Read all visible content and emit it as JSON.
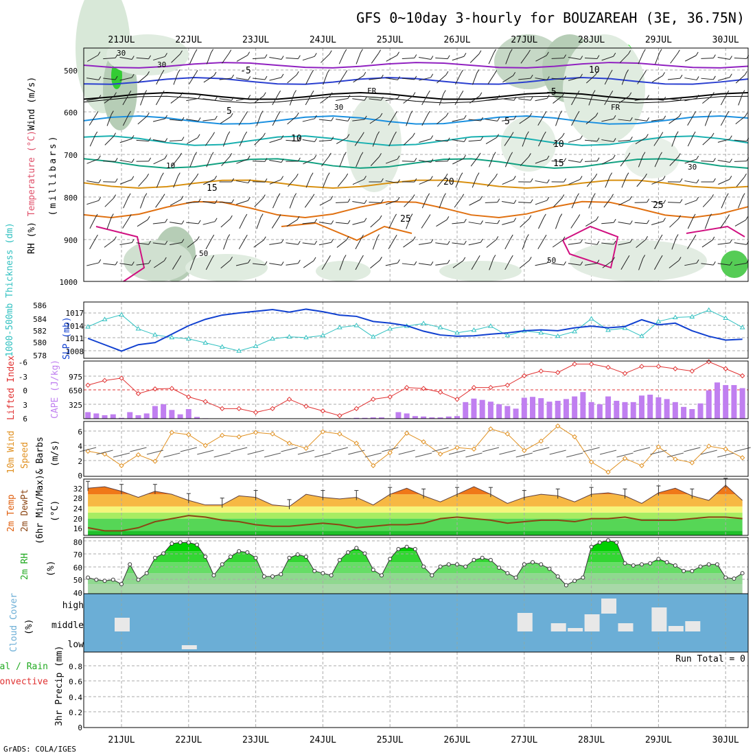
{
  "header": {
    "title": "GFS 0~10day 3-hourly for BOUZAREAH (3E, 36.75N)",
    "footer": "GrADS: COLA/IGES",
    "run_total": "Run Total = 0"
  },
  "dates": [
    "21JUL",
    "22JUL",
    "23JUL",
    "24JUL",
    "25JUL",
    "26JUL",
    "27JUL",
    "28JUL",
    "29JUL",
    "30JUL"
  ],
  "colors": {
    "cloud_bg": "#6baed6",
    "cape_bar": "#c07ff0",
    "rh_green": "#22cc22",
    "temp_orange": "#f07818",
    "slp_line": "#1040d0",
    "thick_line": "#30c0c0",
    "li_line": "#e03030",
    "wind_line": "#e09020",
    "dew_line": "#8b4513"
  },
  "panels": {
    "profile": {
      "y_label": "(millibars)",
      "y_ticks": [
        "500",
        "600",
        "700",
        "800",
        "900",
        "1000"
      ],
      "side_labels": {
        "rh": "RH (%)",
        "temp": "Temperature (°C)",
        "wind": "Wind (m/s)"
      },
      "contour_labels": {
        "t_m5": "-5",
        "t_m5b": "-5",
        "t_fr": "FR",
        "t_fr2": "FR",
        "t_5": "5",
        "t_5b": "5",
        "t_10": "10",
        "t_10b": "10",
        "t_10c": "10",
        "t_15": "15",
        "t_15b": "15",
        "t_20": "20",
        "t_25": "25",
        "t_25b": "25",
        "rh_30": "30",
        "rh_30b": "30",
        "rh_30c": "30",
        "rh_30d": "30",
        "rh_10": "10",
        "rh_50": "50",
        "rh_50b": "50"
      }
    },
    "pressure": {
      "label_thick": "1000-500mb Thickness (dm)",
      "label_slp": "SLP (mb)",
      "thick_ticks": [
        "586",
        "584",
        "582",
        "580",
        "578"
      ],
      "slp_ticks": [
        "1017",
        "1014",
        "1011",
        "1008"
      ]
    },
    "stability": {
      "label_li": "Lifted Index",
      "label_cape": "CAPE (J/kg)",
      "li_ticks": [
        "-6",
        "-3",
        "0",
        "3",
        "6"
      ],
      "cape_ticks": [
        "975",
        "650",
        "325"
      ]
    },
    "wind10": {
      "label_a": "10m Wind",
      "label_b": "Speed",
      "label_c": "& Barbs",
      "label_d": "(m/s)",
      "ticks": [
        "6",
        "4",
        "2",
        "0"
      ]
    },
    "temp2m": {
      "label_a": "2m Temp",
      "label_b": "2m DewPt",
      "label_c": "(6hr Min/Max)",
      "label_d": "(°C)",
      "ticks": [
        "32",
        "28",
        "24",
        "20",
        "16"
      ]
    },
    "rh2m": {
      "label_a": "2m RH",
      "label_b": "(%)",
      "ticks": [
        "80",
        "70",
        "60",
        "50",
        "40"
      ]
    },
    "cloud": {
      "label_a": "Cloud Cover",
      "label_b": "(%)",
      "levels": [
        "high",
        "middle",
        "low"
      ]
    },
    "precip": {
      "label_a": "Total / Rain",
      "label_b": "Convective",
      "label_c": "3hr Precip (mm)",
      "ticks": [
        "0.8",
        "0.6",
        "0.4",
        "0.2",
        "0"
      ]
    }
  },
  "chart_data": [
    {
      "type": "line",
      "panel": "1000-500mb Thickness / SLP",
      "x_unit": "day index (0 = 21JUL 00Z)",
      "series": [
        {
          "name": "1000-500mb Thickness (dm)",
          "x": [
            -0.5,
            -0.25,
            0,
            0.25,
            0.5,
            0.75,
            1,
            1.25,
            1.5,
            1.75,
            2,
            2.25,
            2.5,
            2.75,
            3,
            3.25,
            3.5,
            3.75,
            4,
            4.25,
            4.5,
            4.75,
            5,
            5.25,
            5.5,
            5.75,
            6,
            6.25,
            6.5,
            6.75,
            7,
            7.25,
            7.5,
            7.75,
            8,
            8.25,
            8.5,
            8.75,
            9,
            9.25
          ],
          "values": [
            582.5,
            583.6,
            584.3,
            582.2,
            581.3,
            580.9,
            580.7,
            580.1,
            579.5,
            578.9,
            579.6,
            580.7,
            581.0,
            580.9,
            581.2,
            582.4,
            582.7,
            581.0,
            582.2,
            582.6,
            583.0,
            582.4,
            581.6,
            582.0,
            582.6,
            581.2,
            581.9,
            581.6,
            581.1,
            581.8,
            583.7,
            582.0,
            582.3,
            581.1,
            583.3,
            583.9,
            584.0,
            585.0,
            583.8,
            582.4
          ]
        },
        {
          "name": "SLP (mb)",
          "x": [
            -0.5,
            -0.25,
            0,
            0.25,
            0.5,
            0.75,
            1,
            1.25,
            1.5,
            1.75,
            2,
            2.25,
            2.5,
            2.75,
            3,
            3.25,
            3.5,
            3.75,
            4,
            4.25,
            4.5,
            4.75,
            5,
            5.25,
            5.5,
            5.75,
            6,
            6.25,
            6.5,
            6.75,
            7,
            7.25,
            7.5,
            7.75,
            8,
            8.25,
            8.5,
            8.75,
            9,
            9.25
          ],
          "values": [
            1011,
            1009.5,
            1008,
            1009.5,
            1010,
            1012,
            1014,
            1015.5,
            1016.5,
            1017,
            1017.4,
            1017.8,
            1017.2,
            1017.9,
            1017.3,
            1016.5,
            1016.2,
            1015,
            1014.6,
            1014,
            1012.7,
            1011.8,
            1011.5,
            1011.6,
            1012,
            1012.3,
            1012.8,
            1013,
            1012.8,
            1013.5,
            1013.9,
            1013.5,
            1013.8,
            1015.4,
            1014.2,
            1014.6,
            1012.8,
            1011.5,
            1010.6,
            1010.8
          ]
        }
      ]
    },
    {
      "type": "bar",
      "panel": "CAPE / Lifted Index",
      "x_unit": "day index",
      "series": [
        {
          "name": "CAPE (J/kg)",
          "x": [
            -0.5,
            -0.375,
            -0.25,
            -0.125,
            0,
            0.125,
            0.25,
            0.375,
            0.5,
            0.625,
            0.75,
            0.875,
            1,
            1.125,
            1.25,
            1.375,
            1.5,
            1.625,
            1.75,
            1.875,
            2,
            2.125,
            2.25,
            2.375,
            2.5,
            2.625,
            2.75,
            2.875,
            3,
            3.125,
            3.25,
            3.375,
            3.5,
            3.625,
            3.75,
            3.875,
            4,
            4.125,
            4.25,
            4.375,
            4.5,
            4.625,
            4.75,
            4.875,
            5,
            5.125,
            5.25,
            5.375,
            5.5,
            5.625,
            5.75,
            5.875,
            6,
            6.125,
            6.25,
            6.375,
            6.5,
            6.625,
            6.75,
            6.875,
            7,
            7.125,
            7.25,
            7.375,
            7.5,
            7.625,
            7.75,
            7.875,
            8,
            8.125,
            8.25,
            8.375,
            8.5,
            8.625,
            8.75,
            8.875,
            9,
            9.125,
            9.25
          ],
          "values": [
            150,
            120,
            80,
            100,
            20,
            150,
            80,
            120,
            290,
            330,
            200,
            100,
            220,
            40,
            10,
            0,
            0,
            0,
            0,
            0,
            0,
            0,
            0,
            0,
            0,
            0,
            0,
            0,
            0,
            0,
            0,
            10,
            20,
            20,
            30,
            30,
            10,
            150,
            120,
            60,
            50,
            30,
            30,
            50,
            60,
            380,
            460,
            430,
            390,
            330,
            290,
            230,
            480,
            500,
            470,
            390,
            410,
            450,
            510,
            610,
            380,
            330,
            510,
            410,
            380,
            380,
            530,
            550,
            490,
            450,
            380,
            270,
            220,
            350,
            650,
            830,
            770,
            770,
            700
          ]
        },
        {
          "name": "Lifted Index",
          "x": [
            -0.5,
            -0.25,
            0,
            0.25,
            0.5,
            0.75,
            1,
            1.25,
            1.5,
            1.75,
            2,
            2.25,
            2.5,
            2.75,
            3,
            3.25,
            3.5,
            3.75,
            4,
            4.25,
            4.5,
            4.75,
            5,
            5.25,
            5.5,
            5.75,
            6,
            6.25,
            6.5,
            6.75,
            7,
            7.25,
            7.5,
            7.75,
            8,
            8.25,
            8.5,
            8.75,
            9,
            9.25
          ],
          "values": [
            -1,
            -2,
            -2.5,
            0.8,
            -0.2,
            -0.3,
            1.5,
            2.5,
            4,
            4,
            4.8,
            4,
            2,
            3.5,
            4.5,
            5.5,
            4,
            2,
            1.5,
            -0.5,
            -0.3,
            0.5,
            2,
            -0.5,
            -0.5,
            -1,
            -3,
            -4,
            -3.7,
            -5.5,
            -5.5,
            -4.8,
            -3.5,
            -5,
            -5,
            -4.5,
            -4,
            -6,
            -4.5,
            -3
          ]
        }
      ]
    },
    {
      "type": "line",
      "panel": "10m Wind Speed (m/s)",
      "x_unit": "day index",
      "series": [
        {
          "name": "10m Wind Speed (m/s)",
          "x": [
            -0.5,
            -0.25,
            0,
            0.25,
            0.5,
            0.75,
            1,
            1.25,
            1.5,
            1.75,
            2,
            2.25,
            2.5,
            2.75,
            3,
            3.25,
            3.5,
            3.75,
            4,
            4.25,
            4.5,
            4.75,
            5,
            5.25,
            5.5,
            5.75,
            6,
            6.25,
            6.5,
            6.75,
            7,
            7.25,
            7.5,
            7.75,
            8,
            8.25,
            8.5,
            8.75,
            9,
            9.25
          ],
          "values": [
            3.2,
            2.8,
            1.2,
            2.7,
            1.8,
            5.8,
            5.5,
            4.0,
            5.4,
            5.2,
            5.8,
            5.6,
            4.3,
            3.6,
            5.9,
            5.6,
            4.3,
            1.2,
            3.0,
            5.7,
            4.5,
            2.8,
            3.7,
            3.5,
            6.3,
            5.6,
            3.3,
            4.6,
            6.7,
            5.2,
            1.7,
            0.3,
            2.2,
            1.2,
            3.8,
            2.1,
            1.6,
            3.9,
            3.5,
            2.3
          ]
        }
      ]
    },
    {
      "type": "area",
      "panel": "2m Temp / DewPt (°C)",
      "x_unit": "day index",
      "series": [
        {
          "name": "2m Temp",
          "x": [
            -0.5,
            -0.25,
            0,
            0.25,
            0.5,
            0.75,
            1,
            1.25,
            1.5,
            1.75,
            2,
            2.25,
            2.5,
            2.75,
            3,
            3.25,
            3.5,
            3.75,
            4,
            4.25,
            4.5,
            4.75,
            5,
            5.25,
            5.5,
            5.75,
            6,
            6.25,
            6.5,
            6.75,
            7,
            7.25,
            7.5,
            7.75,
            8,
            8.25,
            8.5,
            8.75,
            9,
            9.25
          ],
          "values": [
            30,
            30.5,
            29,
            27,
            29,
            28,
            26,
            24.5,
            24.5,
            27.5,
            27,
            24.5,
            24,
            28,
            27,
            26.5,
            27,
            24.5,
            28,
            30,
            27.5,
            25.5,
            28,
            30.5,
            28,
            25,
            27,
            28,
            27.5,
            25.5,
            28,
            28.5,
            27.5,
            25,
            28.5,
            30,
            27.5,
            26,
            31,
            26
          ]
        },
        {
          "name": "2m DewPt",
          "x": [
            -0.5,
            -0.25,
            0,
            0.25,
            0.5,
            0.75,
            1,
            1.25,
            1.5,
            1.75,
            2,
            2.25,
            2.5,
            2.75,
            3,
            3.25,
            3.5,
            3.75,
            4,
            4.25,
            4.5,
            4.75,
            5,
            5.25,
            5.5,
            5.75,
            6,
            6.25,
            6.5,
            6.75,
            7,
            7.25,
            7.5,
            7.75,
            8,
            8.25,
            8.5,
            8.75,
            9,
            9.25
          ],
          "values": [
            17,
            16,
            16,
            17,
            19,
            20,
            21,
            20.5,
            19.5,
            19,
            18,
            17.5,
            17.5,
            18,
            18.5,
            18,
            17,
            17.5,
            18,
            18,
            18.5,
            20,
            20.5,
            20,
            19.5,
            18.5,
            19,
            19.5,
            19.5,
            19,
            20,
            20,
            20.5,
            19.5,
            19.5,
            19.5,
            20,
            20.5,
            20.5,
            20
          ]
        }
      ]
    },
    {
      "type": "area",
      "panel": "2m RH (%)",
      "x_unit": "day index",
      "series": [
        {
          "name": "2m RH (%)",
          "x": [
            -0.5,
            -0.375,
            -0.25,
            -0.125,
            0,
            0.125,
            0.25,
            0.375,
            0.5,
            0.625,
            0.75,
            0.875,
            1,
            1.125,
            1.25,
            1.375,
            1.5,
            1.625,
            1.75,
            1.875,
            2,
            2.125,
            2.25,
            2.375,
            2.5,
            2.625,
            2.75,
            2.875,
            3,
            3.125,
            3.25,
            3.375,
            3.5,
            3.625,
            3.75,
            3.875,
            4,
            4.125,
            4.25,
            4.375,
            4.5,
            4.625,
            4.75,
            4.875,
            5,
            5.125,
            5.25,
            5.375,
            5.5,
            5.625,
            5.75,
            5.875,
            6,
            6.125,
            6.25,
            6.375,
            6.5,
            6.625,
            6.75,
            6.875,
            7,
            7.125,
            7.25,
            7.375,
            7.5,
            7.625,
            7.75,
            7.875,
            8,
            8.125,
            8.25,
            8.375,
            8.5,
            8.625,
            8.75,
            8.875,
            9,
            9.125,
            9.25
          ],
          "values": [
            46,
            44,
            43,
            44,
            40,
            58,
            44,
            50,
            64,
            68,
            77,
            78,
            78,
            76,
            65,
            48,
            58,
            65,
            70,
            69,
            64,
            47,
            47,
            49,
            64,
            67,
            65,
            52,
            50,
            48,
            62,
            69,
            73,
            68,
            53,
            48,
            63,
            72,
            74,
            72,
            56,
            48,
            56,
            58,
            58,
            56,
            62,
            64,
            62,
            55,
            50,
            46,
            58,
            60,
            58,
            54,
            47,
            39,
            43,
            46,
            74,
            78,
            80,
            78,
            59,
            57,
            58,
            59,
            63,
            60,
            57,
            52,
            52,
            56,
            58,
            58,
            46,
            45,
            50
          ]
        }
      ]
    },
    {
      "type": "bar",
      "panel": "Cloud Cover (%)",
      "categories": [
        "low",
        "middle",
        "high"
      ],
      "note": "mostly clear; mid/high cloud around 21JUL, 27JUL-29JUL",
      "series": [
        {
          "name": "cloud_x",
          "x": [
            0.0,
            1.0,
            6.0,
            6.5,
            7.0,
            7.5,
            8.0,
            8.5
          ]
        }
      ]
    },
    {
      "type": "bar",
      "panel": "3hr Precip (mm)",
      "ylim": [
        0,
        0.9
      ],
      "series": [
        {
          "name": "Total / Rain",
          "values": []
        },
        {
          "name": "Convective",
          "values": []
        }
      ]
    }
  ]
}
